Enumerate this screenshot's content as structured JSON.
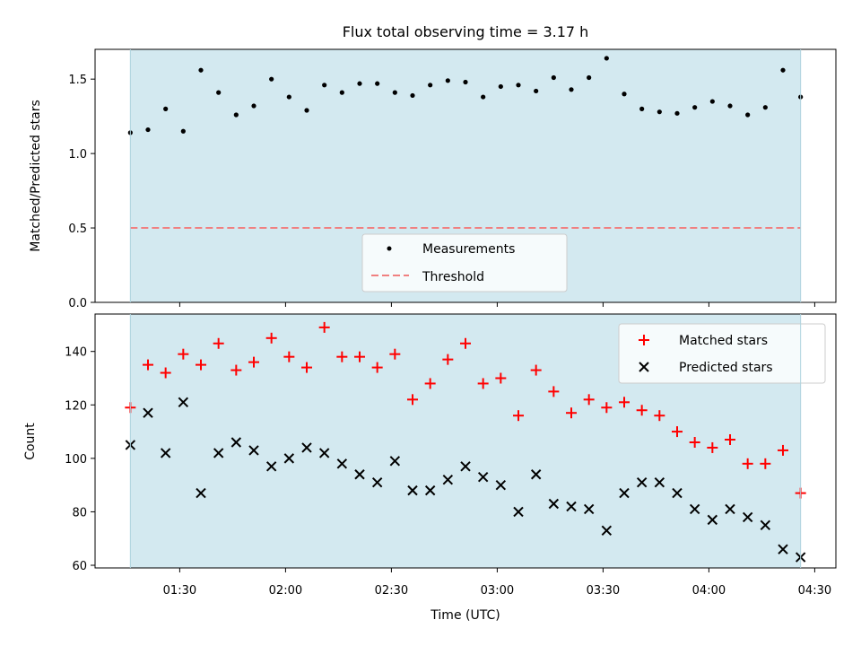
{
  "chart_data": [
    {
      "type": "scatter",
      "title": "Flux total observing time = 3.17 h",
      "xlabel": "",
      "ylabel": "Matched/Predicted stars",
      "ylim": [
        0,
        1.7
      ],
      "yticks": [
        0.0,
        0.5,
        1.0,
        1.5
      ],
      "ytick_labels": [
        "0.0",
        "0.5",
        "1.0",
        "1.5"
      ],
      "shaded_range_minutes": [
        76,
        266
      ],
      "threshold": 0.5,
      "legend": {
        "position": "lower-center",
        "entries": [
          "Measurements",
          "Threshold"
        ]
      },
      "series": [
        {
          "name": "Measurements",
          "color": "#000000",
          "x_minutes": [
            76,
            81,
            86,
            91,
            96,
            101,
            106,
            111,
            116,
            121,
            126,
            131,
            136,
            141,
            146,
            151,
            156,
            161,
            166,
            171,
            176,
            181,
            186,
            191,
            196,
            201,
            206,
            211,
            216,
            221,
            226,
            231,
            236,
            241,
            246,
            251,
            256,
            261,
            266
          ],
          "values": [
            1.14,
            1.16,
            1.3,
            1.15,
            1.56,
            1.41,
            1.26,
            1.32,
            1.5,
            1.38,
            1.29,
            1.46,
            1.41,
            1.47,
            1.47,
            1.41,
            1.39,
            1.46,
            1.49,
            1.48,
            1.38,
            1.45,
            1.46,
            1.42,
            1.51,
            1.43,
            1.51,
            1.64,
            1.4,
            1.3,
            1.28,
            1.27,
            1.31,
            1.35,
            1.32,
            1.26,
            1.31,
            1.56,
            1.38
          ]
        }
      ]
    },
    {
      "type": "scatter",
      "title": "",
      "xlabel": "Time (UTC)",
      "ylabel": "Count",
      "ylim": [
        59,
        154
      ],
      "yticks": [
        60,
        80,
        100,
        120,
        140
      ],
      "ytick_labels": [
        "60",
        "80",
        "100",
        "120",
        "140"
      ],
      "xlim_minutes": [
        66,
        276
      ],
      "xticks_minutes": [
        90,
        120,
        150,
        180,
        210,
        240,
        270
      ],
      "xtick_labels": [
        "01:30",
        "02:00",
        "02:30",
        "03:00",
        "03:30",
        "04:00",
        "04:30"
      ],
      "legend": {
        "position": "top-right",
        "entries": [
          "Matched stars",
          "Predicted stars"
        ]
      },
      "x_minutes": [
        76,
        81,
        86,
        91,
        96,
        101,
        106,
        111,
        116,
        121,
        126,
        131,
        136,
        141,
        146,
        151,
        156,
        161,
        166,
        171,
        176,
        181,
        186,
        191,
        196,
        201,
        206,
        211,
        216,
        221,
        226,
        231,
        236,
        241,
        246,
        251,
        256,
        261,
        266
      ],
      "series": [
        {
          "name": "Matched stars",
          "marker": "plus",
          "color": "#ff0000",
          "values": [
            119,
            135,
            132,
            139,
            135,
            143,
            133,
            136,
            145,
            138,
            134,
            149,
            138,
            138,
            134,
            139,
            122,
            128,
            137,
            143,
            128,
            130,
            116,
            133,
            125,
            117,
            122,
            119,
            121,
            118,
            116,
            110,
            106,
            104,
            107,
            98,
            98,
            103,
            87
          ]
        },
        {
          "name": "Predicted stars",
          "marker": "x",
          "color": "#000000",
          "values": [
            105,
            117,
            102,
            121,
            87,
            102,
            106,
            103,
            97,
            100,
            104,
            102,
            98,
            94,
            91,
            99,
            88,
            88,
            92,
            97,
            93,
            90,
            80,
            94,
            83,
            82,
            81,
            73,
            87,
            91,
            91,
            87,
            81,
            77,
            81,
            78,
            75,
            66,
            63
          ]
        }
      ]
    }
  ],
  "colors": {
    "shade": "#d3e9f0",
    "threshold": "#f08080",
    "matched": "#ff0000",
    "predicted": "#000000"
  }
}
